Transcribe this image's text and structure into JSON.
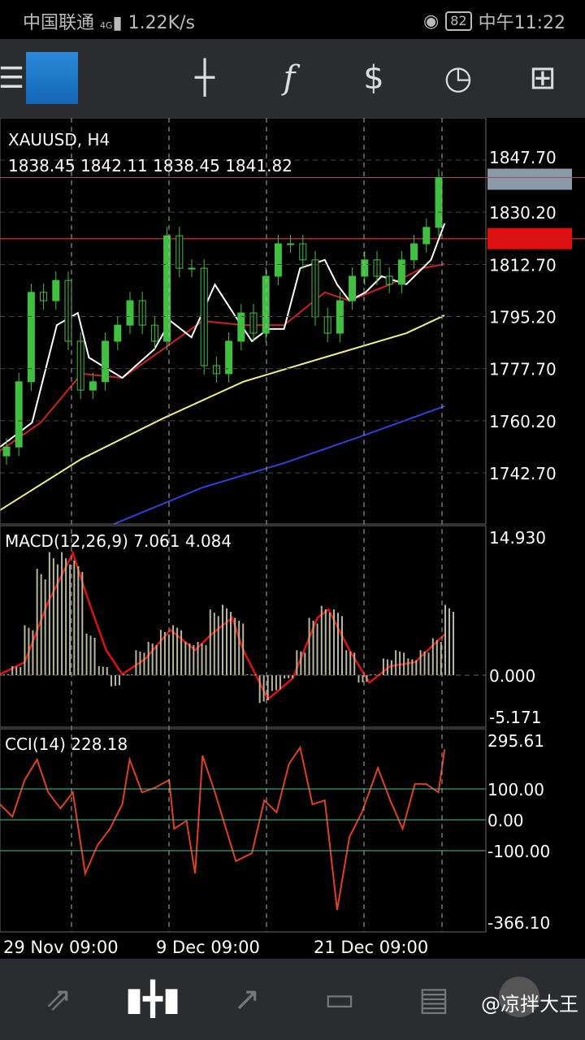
{
  "status": {
    "carrier": "中国联通",
    "network": "4G",
    "speed": "1.22K/s",
    "battery": "82",
    "time": "中午11:22"
  },
  "toolbar": {
    "icons": [
      "menu-icon",
      "mt4-logo",
      "crosshair-icon",
      "indicators-icon",
      "trade-icon",
      "timeframe-clock-icon",
      "new-order-icon"
    ]
  },
  "chart_data": [
    {
      "type": "candlestick",
      "title": "XAUUSD, H4",
      "ohlc_label": "1838.45 1842.11 1838.45 1841.82",
      "current_price": "1841.82",
      "line_price": "1821.33",
      "yticks": [
        "1847.70",
        "1830.20",
        "1812.70",
        "1795.20",
        "1777.70",
        "1760.20",
        "1742.70"
      ],
      "ylim": [
        1725.5,
        1860.5
      ],
      "closes": [
        1751.4,
        1773.3,
        1803.3,
        1800.5,
        1807.3,
        1786.9,
        1770.5,
        1773.3,
        1786.9,
        1792.3,
        1800.5,
        1792.3,
        1786.9,
        1822.3,
        1811.4,
        1811.4,
        1778.7,
        1776.0,
        1786.9,
        1796.4,
        1789.6,
        1808.7,
        1819.6,
        1819.6,
        1814.2,
        1795.1,
        1789.6,
        1800.5,
        1808.7,
        1814.2,
        1808.7,
        1806.0,
        1814.2,
        1819.6,
        1825.1,
        1841.8
      ],
      "moving_averages": [
        {
          "color": "#ffffff",
          "x": [
            0,
            2.6,
            4.6,
            6.3,
            7.2,
            9.9,
            12.5,
            13.8,
            15.5,
            17.4,
            19.1,
            20.4,
            21.7,
            23.0,
            24.3,
            26.3,
            27.3,
            28.3,
            29.6,
            30.9,
            32.9,
            34.9,
            36
          ],
          "y": [
            1751.4,
            1759.6,
            1792.3,
            1796.4,
            1781.4,
            1774.6,
            1784.2,
            1793.7,
            1788.2,
            1805.9,
            1795.0,
            1786.9,
            1791.0,
            1791.0,
            1811.4,
            1814.2,
            1805.9,
            1800.5,
            1803.3,
            1808.7,
            1806.0,
            1814.2,
            1826.4
          ]
        },
        {
          "color": "#d02020",
          "x": [
            0,
            3.3,
            6.6,
            9.9,
            13.2,
            16.4,
            19.7,
            23.0,
            26.3,
            28.3,
            31.6,
            34.2,
            36
          ],
          "y": [
            1750.1,
            1759.6,
            1776.0,
            1774.6,
            1784.2,
            1793.7,
            1792.3,
            1792.3,
            1803.3,
            1800.5,
            1806.0,
            1811.4,
            1812.8
          ]
        },
        {
          "color": "#f0f080",
          "x": [
            0,
            6.6,
            13.2,
            19.7,
            26.3,
            32.9,
            36
          ],
          "y": [
            1730.2,
            1747.4,
            1761.0,
            1773.3,
            1781.5,
            1789.6,
            1795.6
          ]
        },
        {
          "color": "#3040e0",
          "x": [
            9.2,
            16.4,
            23.0,
            29.6,
            36
          ],
          "y": [
            1725.5,
            1737.8,
            1746.0,
            1755.5,
            1765.1
          ]
        }
      ]
    },
    {
      "type": "bar+line",
      "title": "MACD(12,26,9) 7.061 4.084",
      "yticks": [
        "14.930",
        "0.000",
        "-5.171"
      ],
      "ylim": [
        -5.171,
        14.93
      ],
      "histogram": [
        0.1,
        0.97,
        5.4,
        11.5,
        13.3,
        13.3,
        12.4,
        4.5,
        0.97,
        -1.2,
        0.1,
        2.7,
        3.6,
        4.9,
        5.4,
        3.6,
        3.6,
        7.1,
        7.6,
        6.2,
        0.1,
        -3.0,
        -1.7,
        -0.35,
        2.7,
        6.2,
        7.5,
        7.1,
        2.7,
        -0.8,
        0.1,
        1.8,
        2.7,
        1.8,
        2.7,
        4.0,
        7.6
      ],
      "signal": {
        "x": [
          0,
          2,
          3.9,
          5.9,
          7.2,
          8.6,
          9.9,
          11.8,
          13.8,
          15.8,
          17.1,
          18.8,
          19.7,
          21.7,
          23.7,
          25.7,
          26.6,
          28.3,
          29.9,
          31.6,
          33.6,
          36
        ],
        "y": [
          0.1,
          1.4,
          7.9,
          13.2,
          7.9,
          2.7,
          0.1,
          1.8,
          4.9,
          2.7,
          4.4,
          6.2,
          2.7,
          -2.6,
          -0.35,
          6.2,
          7.1,
          2.7,
          -0.8,
          0.97,
          1.4,
          4.4
        ]
      }
    },
    {
      "type": "line",
      "title": "CCI(14) 228.18",
      "yticks": [
        "295.61",
        "100.00",
        "0.00",
        "-100.00",
        "-366.10"
      ],
      "ylim": [
        -366.1,
        295.61
      ],
      "levels": [
        100,
        0,
        -100
      ],
      "x": [
        0,
        1,
        2,
        3,
        3.9,
        4.9,
        5.9,
        6.9,
        7.9,
        8.9,
        9.9,
        10.5,
        11.5,
        12.5,
        13.7,
        14.1,
        15.1,
        15.8,
        16.4,
        17.4,
        19.1,
        20.4,
        21.4,
        22.4,
        23.4,
        24.3,
        25.3,
        26.3,
        27.3,
        28.3,
        29.3,
        30.6,
        31.6,
        32.6,
        33.6,
        34.5,
        35.5,
        36
      ],
      "y": [
        50,
        10.5,
        129,
        195,
        89,
        37,
        89,
        -174,
        -82,
        -29,
        50,
        195,
        89,
        103,
        129,
        -29,
        -3,
        -174,
        208,
        89,
        -134,
        -108,
        63,
        24,
        181,
        234,
        50,
        63,
        -292,
        -55,
        24,
        168,
        63,
        -29,
        116,
        116,
        89,
        228.18
      ]
    }
  ],
  "xaxis": {
    "labels": [
      "29 Nov 09:00",
      "9 Dec 09:00",
      "21 Dec 09:00"
    ]
  },
  "nav": {
    "icons": [
      "quotes-icon",
      "chart-icon",
      "trade-icon",
      "history-icon",
      "news-icon",
      "more-icon"
    ],
    "active": "chart-icon"
  },
  "watermark": "@凉拌大王",
  "colors": {
    "bull": "#40c040",
    "price_line": "#c02020",
    "cci": "#e04020",
    "level": "#40c0a0"
  }
}
